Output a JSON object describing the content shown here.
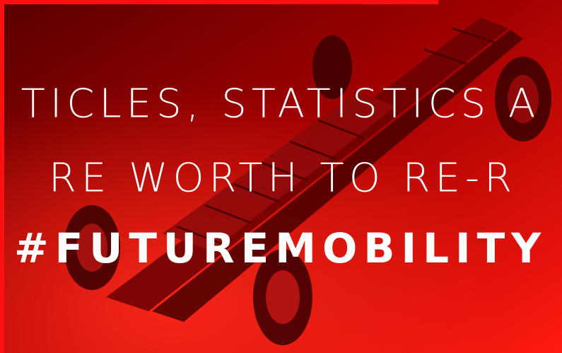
{
  "banner": {
    "lines": [
      "TICLES, STATISTICS A",
      "RE WORTH TO RE-R"
    ],
    "hashtag": "#FUTUREMOBILITY"
  }
}
